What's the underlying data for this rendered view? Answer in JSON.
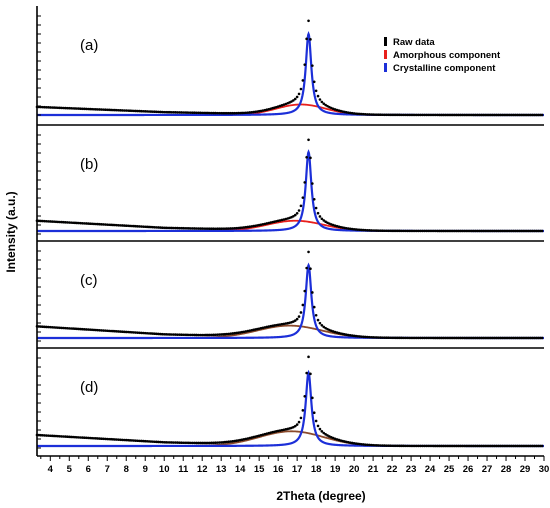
{
  "chart_data": {
    "type": "line",
    "xlabel": "2Theta (degree)",
    "ylabel": "Intensity (a.u.)",
    "xlim": [
      3.3,
      30
    ],
    "x_ticks": [
      4,
      5,
      6,
      7,
      8,
      9,
      10,
      11,
      12,
      13,
      14,
      15,
      16,
      17,
      18,
      19,
      20,
      21,
      22,
      23,
      24,
      25,
      26,
      27,
      28,
      29,
      30
    ],
    "legend": {
      "placement": "top-right",
      "entries": [
        {
          "name": "Raw data",
          "color": "#000000"
        },
        {
          "name": "Amorphous component",
          "color": "#e8201c"
        },
        {
          "name": "Crystalline component",
          "color": "#1c2fd8"
        }
      ]
    },
    "panels": [
      {
        "label": "(a)",
        "amorphous_color": "#e8201c",
        "peak": {
          "center": 17.6,
          "height": 1.0,
          "width": 0.2
        },
        "amorphous": {
          "center": 17.2,
          "height": 0.13,
          "width": 1.3
        },
        "baseline": [
          {
            "x": 3.3,
            "y": 0.1
          },
          {
            "x": 10,
            "y": 0.035
          },
          {
            "x": 17,
            "y": 0.0
          },
          {
            "x": 30,
            "y": 0.0
          }
        ]
      },
      {
        "label": "(b)",
        "amorphous_color": "#e8201c",
        "peak": {
          "center": 17.6,
          "height": 1.0,
          "width": 0.2
        },
        "amorphous": {
          "center": 16.9,
          "height": 0.13,
          "width": 1.5
        },
        "baseline": [
          {
            "x": 3.3,
            "y": 0.13
          },
          {
            "x": 10,
            "y": 0.04
          },
          {
            "x": 17,
            "y": 0.0
          },
          {
            "x": 30,
            "y": 0.0
          }
        ]
      },
      {
        "label": "(c)",
        "amorphous_color": "#8b4a2b",
        "peak": {
          "center": 17.6,
          "height": 1.0,
          "width": 0.2
        },
        "amorphous": {
          "center": 16.6,
          "height": 0.17,
          "width": 1.7
        },
        "baseline": [
          {
            "x": 3.3,
            "y": 0.16
          },
          {
            "x": 10,
            "y": 0.05
          },
          {
            "x": 17,
            "y": 0.0
          },
          {
            "x": 30,
            "y": 0.0
          }
        ]
      },
      {
        "label": "(d)",
        "amorphous_color": "#8b4a2b",
        "peak": {
          "center": 17.6,
          "height": 1.0,
          "width": 0.2
        },
        "amorphous": {
          "center": 16.7,
          "height": 0.2,
          "width": 1.7
        },
        "baseline": [
          {
            "x": 3.3,
            "y": 0.15
          },
          {
            "x": 10,
            "y": 0.05
          },
          {
            "x": 17,
            "y": 0.0
          },
          {
            "x": 30,
            "y": 0.0
          }
        ]
      }
    ]
  }
}
